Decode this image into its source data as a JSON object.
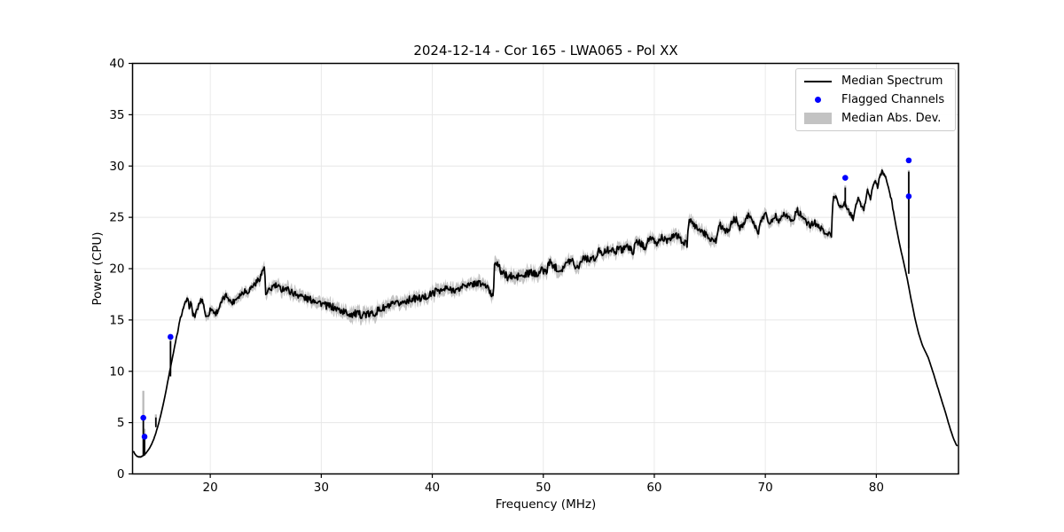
{
  "title": "2024-12-14 - Cor 165 - LWA065 - Pol XX",
  "colors": {
    "median_line": "#000000",
    "flagged": "#0000ff",
    "mad_band": "#c3c3c3",
    "error_bar": "#b8b8b8",
    "grid": "#e7e7e7",
    "spine": "#000000",
    "text": "#000000",
    "legend_border": "#cccccc",
    "background": "#ffffff"
  },
  "legend": {
    "position": "upper right",
    "items": [
      {
        "label": "Median Spectrum",
        "type": "line"
      },
      {
        "label": "Flagged Channels",
        "type": "dot"
      },
      {
        "label": "Median Abs. Dev.",
        "type": "patch"
      }
    ]
  },
  "chart_data": {
    "type": "line",
    "title": "2024-12-14 - Cor 165 - LWA065 - Pol XX",
    "xlabel": "Frequency (MHz)",
    "ylabel": "Power (CPU)",
    "xlim": [
      13.0,
      87.4
    ],
    "ylim": [
      0,
      40
    ],
    "xticks": [
      20,
      30,
      40,
      50,
      60,
      70,
      80
    ],
    "yticks": [
      0,
      5,
      10,
      15,
      20,
      25,
      30,
      35,
      40
    ],
    "grid": true,
    "render_hints": {
      "noise_step_mhz": 0.065,
      "noise_seed": 7,
      "band_edge_jitter": 0.38
    },
    "series": [
      {
        "name": "Median Spectrum",
        "type": "line",
        "points": [
          [
            13.1,
            2.15
          ],
          [
            13.22,
            1.9
          ],
          [
            13.4,
            1.72
          ],
          [
            13.6,
            1.65
          ],
          [
            13.8,
            1.68
          ],
          [
            13.97,
            1.8
          ],
          [
            14.15,
            1.95
          ],
          [
            14.4,
            2.3
          ],
          [
            14.65,
            2.75
          ],
          [
            14.9,
            3.35
          ],
          [
            15.1,
            4.0
          ],
          [
            15.35,
            4.9
          ],
          [
            15.6,
            6.0
          ],
          [
            15.85,
            7.2
          ],
          [
            16.1,
            8.6
          ],
          [
            16.42,
            10.4
          ],
          [
            16.7,
            11.9
          ],
          [
            17.0,
            13.5
          ],
          [
            17.3,
            15.1
          ],
          [
            17.55,
            16.1
          ],
          [
            17.8,
            16.8
          ],
          [
            17.95,
            17.0
          ],
          [
            18.1,
            16.3
          ],
          [
            18.25,
            16.7
          ],
          [
            18.4,
            15.7
          ],
          [
            18.6,
            15.3
          ],
          [
            18.8,
            15.9
          ],
          [
            19.0,
            16.6
          ],
          [
            19.2,
            16.95
          ],
          [
            19.35,
            16.8
          ],
          [
            19.5,
            15.9
          ],
          [
            19.65,
            15.2
          ],
          [
            19.85,
            15.6
          ],
          [
            20.05,
            16.1
          ],
          [
            20.25,
            15.9
          ],
          [
            20.45,
            15.6
          ],
          [
            20.65,
            15.9
          ],
          [
            20.9,
            16.4
          ],
          [
            21.15,
            17.0
          ],
          [
            21.4,
            17.35
          ],
          [
            21.6,
            17.3
          ],
          [
            21.8,
            16.8
          ],
          [
            22.0,
            16.7
          ],
          [
            22.25,
            17.0
          ],
          [
            22.55,
            17.35
          ],
          [
            22.85,
            17.6
          ],
          [
            23.1,
            17.9
          ],
          [
            23.3,
            17.7
          ],
          [
            23.55,
            18.0
          ],
          [
            23.85,
            18.35
          ],
          [
            24.15,
            18.65
          ],
          [
            24.45,
            19.1
          ],
          [
            24.7,
            19.7
          ],
          [
            24.87,
            20.3
          ],
          [
            24.95,
            18.5
          ],
          [
            25.0,
            17.35
          ],
          [
            25.2,
            17.7
          ],
          [
            25.45,
            18.0
          ],
          [
            25.7,
            18.35
          ],
          [
            25.95,
            18.3
          ],
          [
            26.2,
            18.1
          ],
          [
            26.45,
            18.0
          ],
          [
            26.7,
            18.15
          ],
          [
            27.0,
            17.95
          ],
          [
            27.35,
            17.7
          ],
          [
            27.7,
            17.5
          ],
          [
            28.05,
            17.45
          ],
          [
            28.4,
            17.2
          ],
          [
            28.75,
            17.05
          ],
          [
            29.1,
            16.95
          ],
          [
            29.45,
            16.95
          ],
          [
            29.8,
            16.75
          ],
          [
            30.15,
            16.55
          ],
          [
            30.5,
            16.35
          ],
          [
            30.85,
            16.35
          ],
          [
            31.2,
            16.15
          ],
          [
            31.55,
            16.0
          ],
          [
            31.9,
            15.85
          ],
          [
            32.25,
            15.7
          ],
          [
            32.6,
            15.6
          ],
          [
            33.0,
            15.6
          ],
          [
            33.4,
            15.5
          ],
          [
            33.8,
            15.6
          ],
          [
            34.2,
            15.5
          ],
          [
            34.6,
            15.6
          ],
          [
            35.0,
            15.85
          ],
          [
            35.4,
            16.05
          ],
          [
            35.8,
            16.2
          ],
          [
            36.2,
            16.4
          ],
          [
            36.6,
            16.5
          ],
          [
            37.0,
            16.6
          ],
          [
            37.4,
            16.75
          ],
          [
            37.8,
            16.95
          ],
          [
            38.2,
            17.05
          ],
          [
            38.6,
            17.1
          ],
          [
            39.0,
            17.1
          ],
          [
            39.4,
            17.25
          ],
          [
            39.8,
            17.45
          ],
          [
            40.2,
            17.7
          ],
          [
            40.55,
            18.0
          ],
          [
            40.9,
            17.8
          ],
          [
            41.25,
            18.1
          ],
          [
            41.6,
            17.9
          ],
          [
            41.95,
            18.0
          ],
          [
            42.3,
            17.85
          ],
          [
            42.65,
            18.25
          ],
          [
            43.0,
            18.5
          ],
          [
            43.35,
            18.3
          ],
          [
            43.7,
            18.55
          ],
          [
            44.05,
            18.6
          ],
          [
            44.4,
            18.5
          ],
          [
            44.75,
            18.4
          ],
          [
            45.05,
            18.0
          ],
          [
            45.3,
            17.5
          ],
          [
            45.5,
            17.4
          ],
          [
            45.62,
            21.0
          ],
          [
            45.85,
            20.45
          ],
          [
            46.1,
            19.9
          ],
          [
            46.45,
            19.45
          ],
          [
            46.8,
            19.2
          ],
          [
            47.15,
            19.25
          ],
          [
            47.5,
            19.05
          ],
          [
            47.85,
            19.35
          ],
          [
            48.2,
            19.2
          ],
          [
            48.55,
            19.5
          ],
          [
            48.9,
            19.6
          ],
          [
            49.25,
            19.45
          ],
          [
            49.6,
            19.65
          ],
          [
            49.95,
            19.9
          ],
          [
            50.3,
            19.6
          ],
          [
            50.48,
            20.7
          ],
          [
            50.8,
            20.4
          ],
          [
            51.15,
            20.1
          ],
          [
            51.5,
            19.85
          ],
          [
            51.85,
            20.2
          ],
          [
            52.2,
            20.6
          ],
          [
            52.55,
            20.95
          ],
          [
            52.85,
            20.4
          ],
          [
            53.0,
            20.0
          ],
          [
            53.35,
            20.6
          ],
          [
            53.65,
            21.2
          ],
          [
            54.0,
            20.9
          ],
          [
            54.35,
            21.05
          ],
          [
            54.7,
            20.8
          ],
          [
            55.05,
            21.9
          ],
          [
            55.4,
            21.5
          ],
          [
            55.75,
            21.75
          ],
          [
            56.1,
            22.0
          ],
          [
            56.4,
            21.4
          ],
          [
            56.75,
            22.2
          ],
          [
            57.1,
            21.8
          ],
          [
            57.45,
            22.3
          ],
          [
            57.8,
            21.9
          ],
          [
            58.1,
            21.7
          ],
          [
            58.45,
            22.7
          ],
          [
            58.8,
            22.4
          ],
          [
            59.15,
            22.1
          ],
          [
            59.55,
            23.0
          ],
          [
            59.9,
            22.7
          ],
          [
            60.25,
            22.4
          ],
          [
            60.65,
            23.1
          ],
          [
            61.0,
            22.8
          ],
          [
            61.35,
            22.6
          ],
          [
            61.75,
            23.4
          ],
          [
            62.1,
            23.1
          ],
          [
            62.5,
            22.7
          ],
          [
            62.95,
            22.3
          ],
          [
            63.1,
            24.6
          ],
          [
            63.5,
            24.3
          ],
          [
            64.0,
            23.9
          ],
          [
            64.5,
            23.4
          ],
          [
            65.0,
            23.0
          ],
          [
            65.55,
            22.6
          ],
          [
            65.78,
            24.3
          ],
          [
            66.2,
            24.0
          ],
          [
            66.65,
            23.5
          ],
          [
            67.0,
            24.6
          ],
          [
            67.35,
            24.85
          ],
          [
            67.75,
            23.9
          ],
          [
            68.15,
            24.75
          ],
          [
            68.55,
            25.35
          ],
          [
            68.95,
            24.4
          ],
          [
            69.35,
            23.3
          ],
          [
            69.7,
            25.1
          ],
          [
            70.05,
            25.3
          ],
          [
            70.45,
            24.3
          ],
          [
            70.85,
            25.2
          ],
          [
            71.25,
            24.7
          ],
          [
            71.65,
            25.5
          ],
          [
            72.05,
            25.0
          ],
          [
            72.45,
            24.6
          ],
          [
            72.85,
            25.7
          ],
          [
            73.25,
            25.2
          ],
          [
            73.65,
            24.5
          ],
          [
            74.05,
            24.2
          ],
          [
            74.45,
            24.5
          ],
          [
            74.85,
            24.0
          ],
          [
            75.25,
            23.7
          ],
          [
            75.6,
            23.45
          ],
          [
            75.95,
            23.2
          ],
          [
            76.12,
            27.3
          ],
          [
            76.5,
            26.6
          ],
          [
            76.9,
            25.9
          ],
          [
            77.2,
            26.4
          ],
          [
            77.55,
            25.5
          ],
          [
            77.9,
            24.9
          ],
          [
            78.35,
            26.9
          ],
          [
            78.65,
            26.0
          ],
          [
            78.9,
            25.8
          ],
          [
            79.2,
            27.8
          ],
          [
            79.45,
            26.8
          ],
          [
            79.7,
            28.0
          ],
          [
            79.9,
            28.7
          ],
          [
            80.1,
            27.9
          ],
          [
            80.3,
            28.9
          ],
          [
            80.5,
            29.5
          ],
          [
            80.72,
            29.2
          ],
          [
            81.0,
            28.3
          ],
          [
            81.35,
            26.7
          ],
          [
            81.7,
            24.6
          ],
          [
            82.05,
            22.6
          ],
          [
            82.4,
            20.9
          ],
          [
            82.75,
            19.2
          ],
          [
            83.1,
            17.2
          ],
          [
            83.45,
            15.3
          ],
          [
            83.8,
            13.7
          ],
          [
            84.2,
            12.4
          ],
          [
            84.65,
            11.4
          ],
          [
            85.05,
            10.1
          ],
          [
            85.45,
            8.7
          ],
          [
            85.85,
            7.3
          ],
          [
            86.25,
            5.9
          ],
          [
            86.65,
            4.4
          ],
          [
            87.0,
            3.3
          ],
          [
            87.2,
            2.85
          ],
          [
            87.32,
            2.7
          ]
        ]
      },
      {
        "name": "Flagged Channels",
        "type": "scatter",
        "points": [
          [
            13.97,
            5.47
          ],
          [
            14.08,
            3.63
          ],
          [
            16.42,
            13.35
          ],
          [
            77.2,
            28.85
          ],
          [
            82.92,
            30.55
          ],
          [
            82.92,
            27.05
          ]
        ]
      },
      {
        "name": "Median Abs. Dev.",
        "type": "band",
        "halfwidth": [
          [
            13.1,
            0.08
          ],
          [
            15.0,
            0.1
          ],
          [
            16.5,
            0.14
          ],
          [
            17.5,
            0.25
          ],
          [
            18.5,
            0.32
          ],
          [
            20.0,
            0.38
          ],
          [
            22.0,
            0.4
          ],
          [
            24.0,
            0.45
          ],
          [
            26.0,
            0.5
          ],
          [
            28.0,
            0.52
          ],
          [
            30.0,
            0.5
          ],
          [
            32.0,
            0.55
          ],
          [
            33.5,
            0.65
          ],
          [
            35.0,
            0.6
          ],
          [
            36.5,
            0.52
          ],
          [
            38.0,
            0.5
          ],
          [
            40.0,
            0.55
          ],
          [
            42.0,
            0.5
          ],
          [
            44.0,
            0.5
          ],
          [
            45.8,
            0.55
          ],
          [
            47.0,
            0.6
          ],
          [
            49.0,
            0.55
          ],
          [
            51.0,
            0.5
          ],
          [
            53.0,
            0.5
          ],
          [
            55.0,
            0.5
          ],
          [
            57.0,
            0.5
          ],
          [
            59.0,
            0.5
          ],
          [
            61.0,
            0.5
          ],
          [
            63.2,
            0.55
          ],
          [
            65.0,
            0.5
          ],
          [
            67.0,
            0.5
          ],
          [
            69.0,
            0.45
          ],
          [
            71.0,
            0.45
          ],
          [
            73.0,
            0.45
          ],
          [
            75.0,
            0.4
          ],
          [
            76.5,
            0.35
          ],
          [
            78.0,
            0.32
          ],
          [
            79.5,
            0.3
          ],
          [
            80.5,
            0.25
          ],
          [
            81.3,
            0.18
          ],
          [
            82.0,
            0.1
          ],
          [
            83.0,
            0.05
          ],
          [
            84.5,
            0.03
          ],
          [
            87.32,
            0.02
          ]
        ]
      }
    ],
    "flagged_spikes": [
      {
        "f": 13.97,
        "line": [
          1.85,
          5.25
        ],
        "bar": [
          1.85,
          8.1
        ]
      },
      {
        "f": 14.08,
        "line": [
          1.8,
          3.55
        ],
        "bar": [
          1.8,
          4.4
        ]
      },
      {
        "f": 15.1,
        "line": [
          4.55,
          5.5
        ],
        "bar": [
          4.7,
          5.8
        ]
      },
      {
        "f": 16.42,
        "line": [
          9.5,
          12.95
        ],
        "bar": [
          9.8,
          13.1
        ]
      },
      {
        "f": 77.2,
        "line": [
          26.0,
          27.9
        ],
        "bar": [
          26.2,
          28.1
        ]
      },
      {
        "f": 82.92,
        "line": [
          19.5,
          29.45
        ],
        "bar": [
          22.0,
          29.6
        ]
      }
    ]
  }
}
